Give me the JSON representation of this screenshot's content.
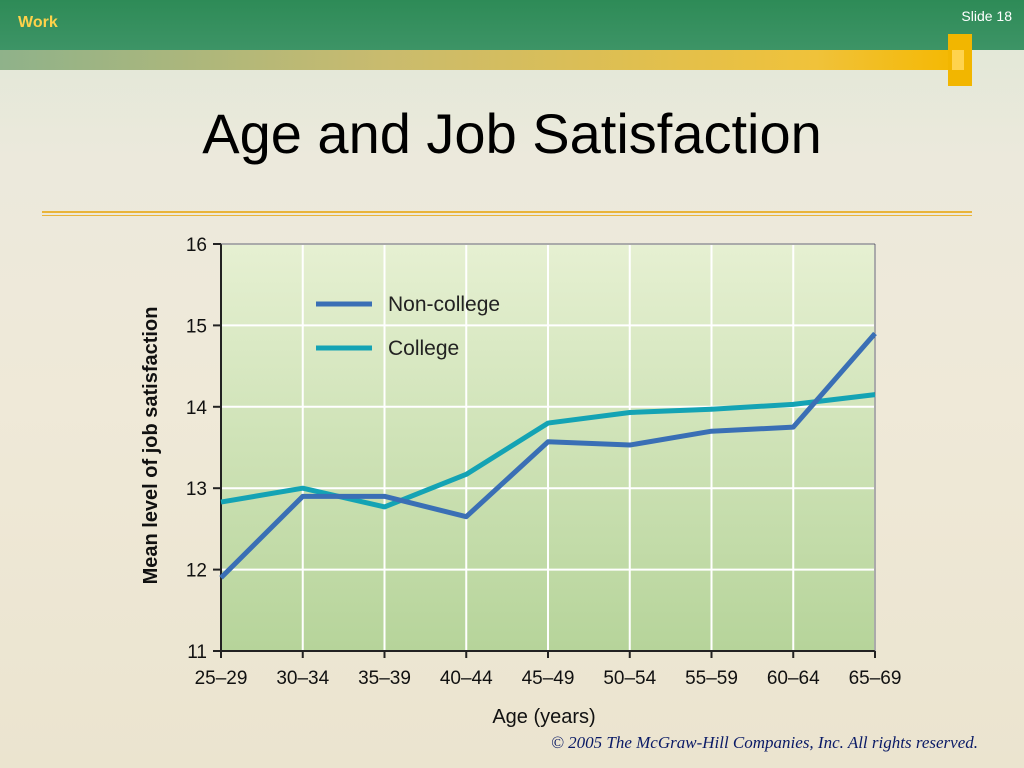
{
  "slide": {
    "section_label": "Work",
    "slide_number": "Slide 18",
    "title": "Age and Job Satisfaction",
    "copyright": "© 2005 The McGraw-Hill Companies, Inc. All rights reserved."
  },
  "colors": {
    "header_green": "#2e8b57",
    "accent_gold": "#f2b600",
    "non_college": "#3a6fb5",
    "college": "#14a3b4",
    "plot_bg_top": "#e6f0d2",
    "plot_bg_bottom": "#b6d49a"
  },
  "chart_data": {
    "type": "line",
    "title": "",
    "xlabel": "Age (years)",
    "ylabel": "Mean level of job satisfaction",
    "categories": [
      "25–29",
      "30–34",
      "35–39",
      "40–44",
      "45–49",
      "50–54",
      "55–59",
      "60–64",
      "65–69"
    ],
    "ylim": [
      11,
      16
    ],
    "yticks": [
      "11",
      "12",
      "13",
      "14",
      "15",
      "16"
    ],
    "grid": true,
    "legend_position": "top-left",
    "series": [
      {
        "name": "Non-college",
        "values": [
          11.9,
          12.9,
          12.9,
          12.65,
          13.57,
          13.53,
          13.7,
          13.75,
          14.9
        ]
      },
      {
        "name": "College",
        "values": [
          12.83,
          13.0,
          12.77,
          13.17,
          13.8,
          13.93,
          13.97,
          14.03,
          14.15
        ]
      }
    ]
  }
}
